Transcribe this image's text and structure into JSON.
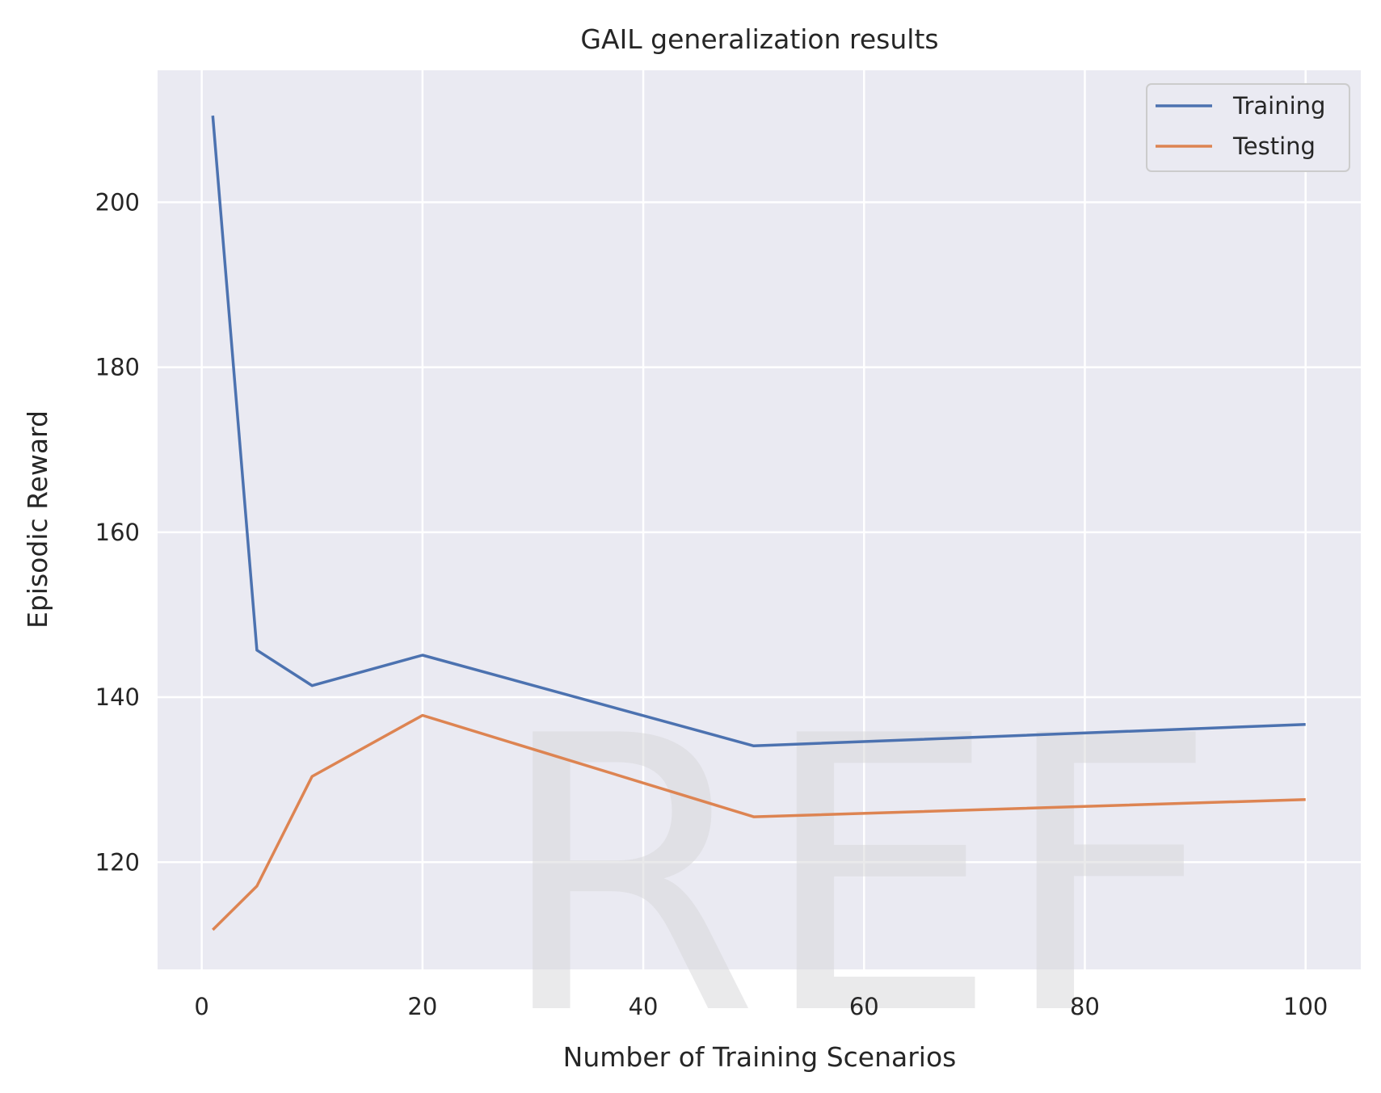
{
  "chart_data": {
    "type": "line",
    "title": "GAIL generalization results",
    "xlabel": "Number of Training Scenarios",
    "ylabel": "Episodic Reward",
    "xlim": [
      -4,
      105
    ],
    "ylim": [
      107,
      216
    ],
    "xticks": [
      0,
      20,
      40,
      60,
      80,
      100
    ],
    "yticks": [
      120,
      140,
      160,
      180,
      200
    ],
    "grid": true,
    "legend_position": "top-right",
    "series": [
      {
        "name": "Training",
        "color": "#4c72b0",
        "x": [
          1,
          5,
          10,
          20,
          50,
          100
        ],
        "y": [
          210.5,
          145.7,
          141.4,
          145.1,
          134.1,
          136.7
        ]
      },
      {
        "name": "Testing",
        "color": "#dd8452",
        "x": [
          1,
          5,
          10,
          20,
          50,
          100
        ],
        "y": [
          111.8,
          117.1,
          130.4,
          137.8,
          125.5,
          127.6
        ]
      }
    ],
    "watermark": "REF"
  }
}
